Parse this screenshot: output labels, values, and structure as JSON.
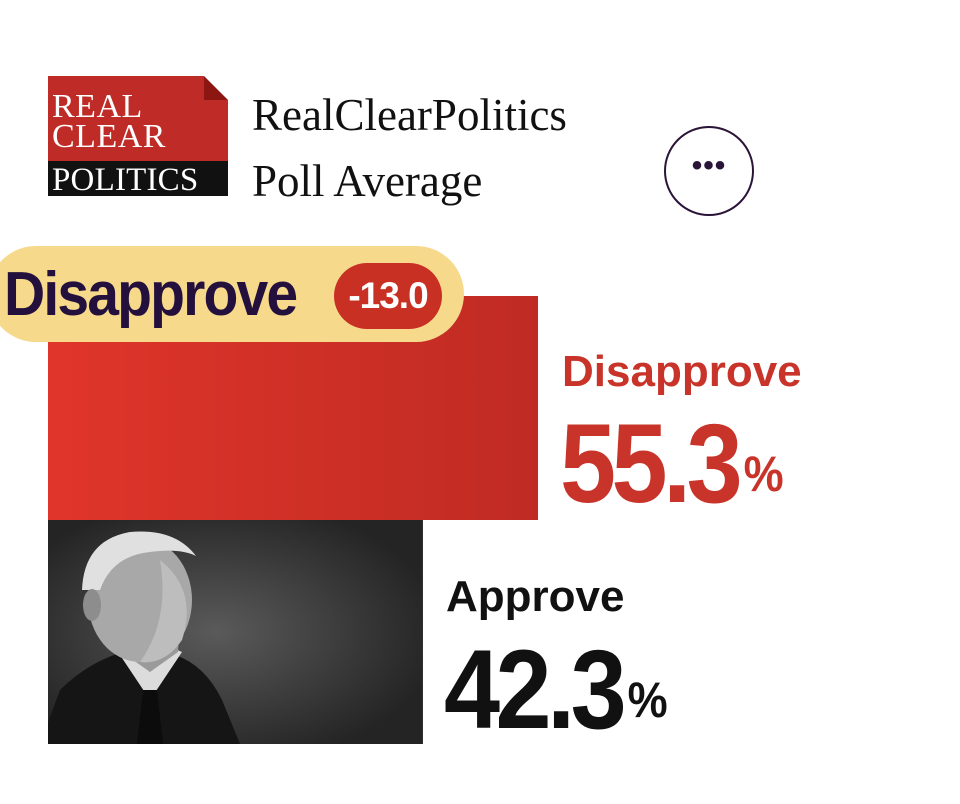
{
  "header": {
    "logo": {
      "line1": "REAL",
      "line2": "CLEAR",
      "line3": "POLITICS"
    },
    "title_line1": "RealClearPolitics",
    "title_line2": "Poll Average",
    "more_button_icon": "more-horizontal-icon",
    "more_button_glyph": "•••"
  },
  "chart_data": {
    "type": "bar",
    "orientation": "horizontal",
    "title": "RealClearPolitics Poll Average",
    "categories": [
      "Disapprove",
      "Approve"
    ],
    "values": [
      55.3,
      42.3
    ],
    "unit": "%",
    "xlim": [
      0,
      100
    ],
    "spread": {
      "label": "Disapprove",
      "value": "-13.0",
      "net": -13.0
    },
    "series": [
      {
        "name": "Disapprove",
        "value": 55.3,
        "display": "55.3",
        "color": "#d83126"
      },
      {
        "name": "Approve",
        "value": 42.3,
        "display": "42.3",
        "color": "#2b2b2b"
      }
    ],
    "percent_symbol": "%"
  },
  "colors": {
    "brand_red": "#bf2b26",
    "disapprove": "#c8342a",
    "approve_bar": "#2b2b2b",
    "pill": "#f7d98c",
    "dark_text": "#24103d"
  }
}
